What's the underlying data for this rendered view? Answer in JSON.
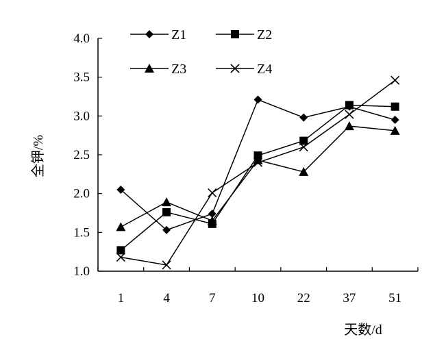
{
  "chart_data": {
    "type": "line",
    "title": "",
    "xlabel": "天数/d",
    "ylabel": "全钾/%",
    "categories": [
      "1",
      "4",
      "7",
      "10",
      "22",
      "37",
      "51"
    ],
    "ylim": [
      1.0,
      4.0
    ],
    "yticks": [
      "1.0",
      "1.5",
      "2.0",
      "2.5",
      "3.0",
      "3.5",
      "4.0"
    ],
    "grid": false,
    "legend_position": "top",
    "series": [
      {
        "name": "Z1",
        "marker": "diamond",
        "values": [
          2.05,
          1.53,
          1.74,
          3.21,
          2.98,
          3.12,
          2.95
        ]
      },
      {
        "name": "Z2",
        "marker": "square",
        "values": [
          1.27,
          1.76,
          1.61,
          2.49,
          2.68,
          3.14,
          3.12
        ]
      },
      {
        "name": "Z3",
        "marker": "triangle",
        "values": [
          1.57,
          1.89,
          1.65,
          2.43,
          2.28,
          2.87,
          2.81
        ]
      },
      {
        "name": "Z4",
        "marker": "x",
        "values": [
          1.18,
          1.08,
          2.01,
          2.4,
          2.6,
          3.02,
          3.46
        ]
      }
    ],
    "colors": {
      "line": "#000000",
      "background": "#ffffff"
    }
  }
}
